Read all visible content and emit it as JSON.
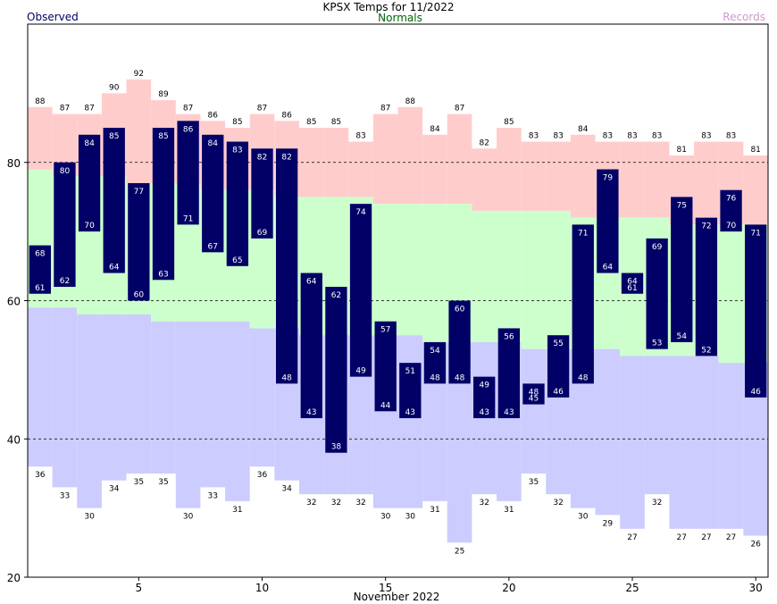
{
  "chart_data": {
    "type": "bar",
    "title": "KPSX Temps for 11/2022",
    "xlabel": "November 2022",
    "legend": {
      "observed": "Observed",
      "normals": "Normals",
      "records": "Records"
    },
    "colors": {
      "observed_bar": "#000066",
      "record_high_band": "#ffcccc",
      "normal_band": "#ccffcc",
      "record_low_band": "#ccccff",
      "observed_label": "#000066",
      "normals_label": "#006600",
      "records_label": "#cc99cc"
    },
    "xlim": [
      0.5,
      30.5
    ],
    "ylim": [
      20,
      100
    ],
    "x_ticks": [
      "5",
      "10",
      "15",
      "20",
      "25",
      "30"
    ],
    "y_ticks": [
      "20",
      "40",
      "60",
      "80"
    ],
    "gridlines": [
      40,
      60,
      80
    ],
    "days": [
      1,
      2,
      3,
      4,
      5,
      6,
      7,
      8,
      9,
      10,
      11,
      12,
      13,
      14,
      15,
      16,
      17,
      18,
      19,
      20,
      21,
      22,
      23,
      24,
      25,
      26,
      27,
      28,
      29,
      30
    ],
    "observed_high": [
      68,
      80,
      84,
      85,
      77,
      85,
      86,
      84,
      83,
      82,
      82,
      64,
      62,
      74,
      57,
      51,
      54,
      60,
      49,
      56,
      48,
      55,
      71,
      79,
      64,
      69,
      75,
      72,
      76,
      71
    ],
    "observed_low": [
      61,
      62,
      70,
      64,
      60,
      63,
      71,
      67,
      65,
      69,
      48,
      43,
      38,
      49,
      44,
      43,
      48,
      48,
      43,
      43,
      45,
      46,
      48,
      64,
      61,
      53,
      54,
      52,
      70,
      46
    ],
    "record_high": [
      88,
      87,
      87,
      90,
      92,
      89,
      87,
      86,
      85,
      87,
      86,
      85,
      85,
      83,
      87,
      88,
      84,
      87,
      82,
      85,
      83,
      83,
      84,
      83,
      83,
      83,
      81,
      83,
      83,
      81
    ],
    "record_low": [
      36,
      33,
      30,
      34,
      35,
      35,
      30,
      33,
      31,
      36,
      34,
      32,
      32,
      32,
      30,
      30,
      31,
      25,
      32,
      31,
      35,
      32,
      30,
      29,
      27,
      32,
      27,
      27,
      27,
      26
    ],
    "normal_high": [
      79,
      78,
      78,
      78,
      77,
      77,
      77,
      76,
      76,
      76,
      75,
      75,
      75,
      75,
      74,
      74,
      74,
      74,
      73,
      73,
      73,
      73,
      72,
      72,
      72,
      72,
      71,
      71,
      71,
      71
    ],
    "normal_low": [
      59,
      59,
      58,
      58,
      58,
      57,
      57,
      57,
      57,
      56,
      56,
      55,
      55,
      55,
      55,
      55,
      54,
      54,
      54,
      54,
      53,
      53,
      53,
      53,
      52,
      52,
      52,
      52,
      51,
      51
    ]
  }
}
